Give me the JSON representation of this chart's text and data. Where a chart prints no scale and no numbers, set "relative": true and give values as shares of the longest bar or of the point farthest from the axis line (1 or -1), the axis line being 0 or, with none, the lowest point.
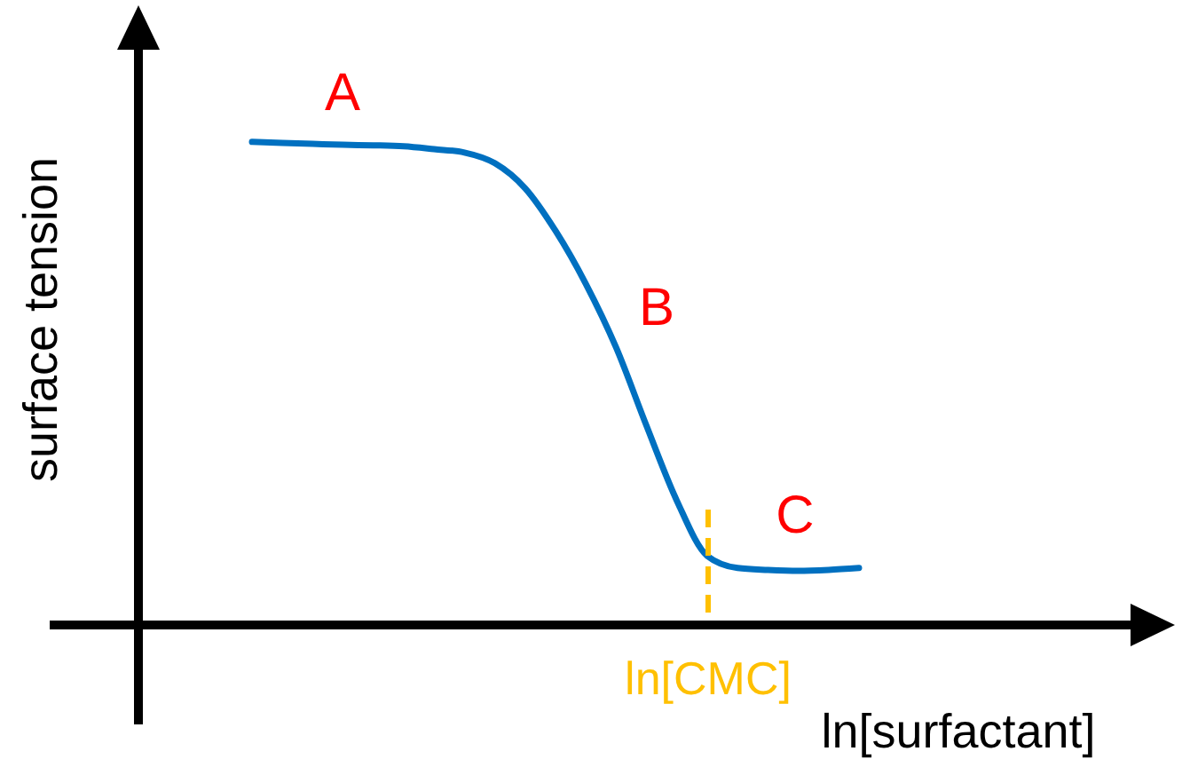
{
  "chart_data": {
    "type": "line",
    "relative": true,
    "xlabel": "ln[surfactant]",
    "ylabel": "surface tension",
    "categories": [
      null,
      null,
      null,
      null,
      null,
      null,
      null,
      null,
      null,
      null,
      null,
      null,
      null,
      null,
      null,
      null,
      null,
      null,
      null,
      null,
      null
    ],
    "series": [
      {
        "color": "#0070c0",
        "values": [
          1,
          0.998,
          0.996,
          0.994,
          0.993,
          0.991,
          0.985,
          0.978,
          0.956,
          0.904,
          0.816,
          0.706,
          0.574,
          0.412,
          0.257,
          0.143,
          0.118,
          0.114,
          0.112,
          0.114,
          0.118
        ]
      }
    ],
    "annotations": [
      "A",
      "B",
      "C",
      "ln[CMC]"
    ],
    "marker": "none",
    "line_style": "solid"
  }
}
